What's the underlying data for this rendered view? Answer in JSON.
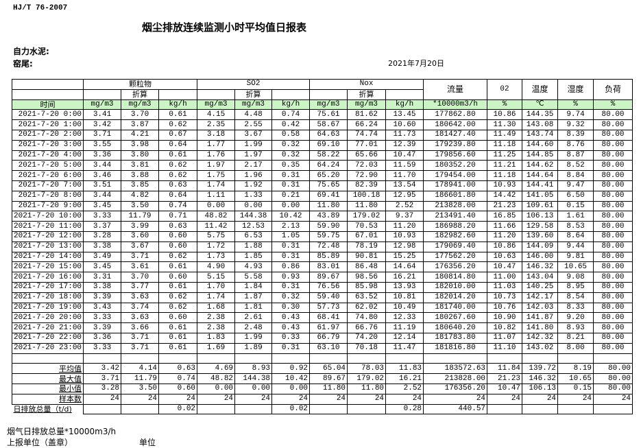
{
  "standard": "HJ/T  76-2007",
  "title": "烟尘排放连续监测小时平均值日报表",
  "company": "自力水泥:",
  "kiln": "窑尾:",
  "date": "2021年7月20日",
  "header": {
    "groups": [
      "颗粒物",
      "SO2",
      "Nox"
    ],
    "converted": "折算",
    "flow": "流量",
    "o2": "02",
    "temp": "温度",
    "humidity": "湿度",
    "load": "负荷",
    "time": "时间",
    "units": [
      "mg/m3",
      "mg/m3",
      "kg/h",
      "mg/m3",
      "mg/m3",
      "kg/h",
      "mg/m3",
      "mg/m3",
      "kg/h",
      "*10000m3/h",
      "%",
      "℃",
      "%",
      "%"
    ]
  },
  "rows": [
    [
      "2021-7-20 0:00",
      "3.41",
      "3.70",
      "0.61",
      "4.15",
      "4.48",
      "0.74",
      "75.61",
      "81.62",
      "13.45",
      "177862.80",
      "10.86",
      "144.35",
      "9.74",
      "80.00"
    ],
    [
      "2021-7-20 1:00",
      "3.42",
      "3.87",
      "0.62",
      "2.35",
      "2.55",
      "0.42",
      "58.67",
      "66.24",
      "10.60",
      "180642.00",
      "11.30",
      "143.08",
      "9.32",
      "80.00"
    ],
    [
      "2021-7-20 2:00",
      "3.71",
      "4.21",
      "0.67",
      "3.18",
      "3.67",
      "0.58",
      "64.63",
      "74.74",
      "11.73",
      "181427.40",
      "11.49",
      "143.74",
      "8.39",
      "80.00"
    ],
    [
      "2021-7-20 3:00",
      "3.55",
      "3.98",
      "0.64",
      "1.77",
      "1.99",
      "0.32",
      "69.10",
      "77.01",
      "12.39",
      "179239.80",
      "11.18",
      "144.60",
      "8.76",
      "80.00"
    ],
    [
      "2021-7-20 4:00",
      "3.36",
      "3.80",
      "0.61",
      "1.76",
      "1.97",
      "0.32",
      "58.22",
      "65.66",
      "10.47",
      "179856.60",
      "11.25",
      "144.85",
      "8.87",
      "80.00"
    ],
    [
      "2021-7-20 5:00",
      "3.44",
      "3.81",
      "0.62",
      "1.97",
      "2.17",
      "0.35",
      "64.24",
      "72.03",
      "11.59",
      "180352.20",
      "11.21",
      "144.62",
      "8.52",
      "80.00"
    ],
    [
      "2021-7-20 6:00",
      "3.46",
      "3.88",
      "0.62",
      "1.75",
      "1.96",
      "0.31",
      "65.20",
      "72.90",
      "11.70",
      "179454.00",
      "11.18",
      "144.64",
      "8.84",
      "80.00"
    ],
    [
      "2021-7-20 7:00",
      "3.51",
      "3.85",
      "0.63",
      "1.74",
      "1.92",
      "0.31",
      "75.65",
      "82.39",
      "13.54",
      "178941.00",
      "10.93",
      "144.41",
      "9.47",
      "80.00"
    ],
    [
      "2021-7-20 8:00",
      "3.44",
      "4.82",
      "0.64",
      "1.11",
      "1.33",
      "0.21",
      "69.41",
      "100.18",
      "12.95",
      "186601.80",
      "14.42",
      "141.05",
      "6.50",
      "80.00"
    ],
    [
      "2021-7-20 9:00",
      "3.45",
      "3.50",
      "0.74",
      "0.00",
      "0.00",
      "0.00",
      "11.80",
      "11.80",
      "2.52",
      "213828.00",
      "21.23",
      "109.61",
      "0.15",
      "80.00"
    ],
    [
      "2021-7-20 10:00",
      "3.33",
      "11.79",
      "0.71",
      "48.82",
      "144.38",
      "10.42",
      "43.89",
      "179.02",
      "9.37",
      "213491.40",
      "16.85",
      "106.13",
      "1.61",
      "80.00"
    ],
    [
      "2021-7-20 11:00",
      "3.37",
      "3.99",
      "0.63",
      "11.42",
      "12.53",
      "2.13",
      "59.90",
      "70.53",
      "11.20",
      "186988.20",
      "11.66",
      "129.58",
      "8.53",
      "80.00"
    ],
    [
      "2021-7-20 12:00",
      "3.28",
      "3.60",
      "0.60",
      "5.75",
      "6.53",
      "1.05",
      "59.75",
      "67.01",
      "10.93",
      "182982.60",
      "11.20",
      "139.60",
      "8.64",
      "80.00"
    ],
    [
      "2021-7-20 13:00",
      "3.38",
      "3.67",
      "0.60",
      "1.72",
      "1.88",
      "0.31",
      "72.48",
      "78.19",
      "12.98",
      "179069.40",
      "10.86",
      "144.09",
      "9.44",
      "80.00"
    ],
    [
      "2021-7-20 14:00",
      "3.49",
      "3.71",
      "0.62",
      "1.73",
      "1.85",
      "0.31",
      "85.89",
      "90.81",
      "15.25",
      "177562.20",
      "10.63",
      "146.00",
      "9.81",
      "80.00"
    ],
    [
      "2021-7-20 15:00",
      "3.45",
      "3.61",
      "0.61",
      "4.90",
      "4.93",
      "0.86",
      "83.01",
      "86.48",
      "14.64",
      "176356.20",
      "10.47",
      "146.32",
      "10.65",
      "80.00"
    ],
    [
      "2021-7-20 16:00",
      "3.31",
      "3.70",
      "0.60",
      "5.15",
      "5.58",
      "0.93",
      "89.67",
      "98.56",
      "16.21",
      "180814.80",
      "11.00",
      "143.04",
      "9.08",
      "80.00"
    ],
    [
      "2021-7-20 17:00",
      "3.38",
      "3.77",
      "0.61",
      "1.70",
      "1.84",
      "0.31",
      "76.56",
      "85.98",
      "13.93",
      "182010.00",
      "11.03",
      "140.25",
      "8.95",
      "80.00"
    ],
    [
      "2021-7-20 18:00",
      "3.39",
      "3.63",
      "0.62",
      "1.74",
      "1.87",
      "0.32",
      "59.40",
      "63.52",
      "10.81",
      "182014.20",
      "10.73",
      "142.17",
      "8.54",
      "80.00"
    ],
    [
      "2021-7-20 19:00",
      "3.43",
      "3.74",
      "0.62",
      "1.68",
      "1.81",
      "0.30",
      "57.73",
      "62.02",
      "10.49",
      "181740.00",
      "10.76",
      "142.03",
      "8.33",
      "80.00"
    ],
    [
      "2021-7-20 20:00",
      "3.33",
      "3.63",
      "0.60",
      "2.38",
      "2.61",
      "0.43",
      "68.41",
      "74.80",
      "12.33",
      "180267.60",
      "10.90",
      "141.87",
      "9.20",
      "80.00"
    ],
    [
      "2021-7-20 21:00",
      "3.39",
      "3.66",
      "0.61",
      "2.38",
      "2.48",
      "0.43",
      "61.97",
      "66.76",
      "11.19",
      "180640.20",
      "10.82",
      "141.80",
      "8.93",
      "80.00"
    ],
    [
      "2021-7-20 22:00",
      "3.36",
      "3.71",
      "0.61",
      "1.83",
      "1.99",
      "0.33",
      "66.79",
      "74.20",
      "12.14",
      "181783.80",
      "11.07",
      "142.32",
      "8.21",
      "80.00"
    ],
    [
      "2021-7-20 23:00",
      "3.33",
      "3.71",
      "0.61",
      "1.69",
      "1.89",
      "0.31",
      "63.10",
      "70.18",
      "11.47",
      "181816.80",
      "11.10",
      "143.02",
      "8.00",
      "80.00"
    ]
  ],
  "summary": [
    [
      "平均值",
      "3.42",
      "4.14",
      "0.63",
      "4.69",
      "8.93",
      "0.92",
      "65.04",
      "78.03",
      "11.83",
      "183572.63",
      "11.84",
      "139.72",
      "8.19",
      "80.00"
    ],
    [
      "最大值",
      "3.71",
      "11.79",
      "0.74",
      "48.82",
      "144.38",
      "10.42",
      "89.67",
      "179.02",
      "16.21",
      "213828.00",
      "21.23",
      "146.32",
      "10.65",
      "80.00"
    ],
    [
      "最小值",
      "3.28",
      "3.50",
      "0.60",
      "0.00",
      "0.00",
      "0.00",
      "11.80",
      "11.80",
      "2.52",
      "176356.20",
      "10.47",
      "106.13",
      "0.15",
      "80.00"
    ],
    [
      "样本数",
      "24",
      "24",
      "24",
      "24",
      "24",
      "24",
      "24",
      "24",
      "24",
      "24",
      "24",
      "24",
      "24",
      "24"
    ],
    [
      "日排放总量（t/d)",
      "",
      "",
      "0.02",
      "",
      "",
      "0.02",
      "",
      "",
      "0.28",
      "440.57",
      "",
      "",
      "",
      ""
    ]
  ],
  "footer": {
    "flue_total": "烟气日排放总量*10000m3/h",
    "reporter": "上报单位（盖章）",
    "unit": "单位"
  }
}
